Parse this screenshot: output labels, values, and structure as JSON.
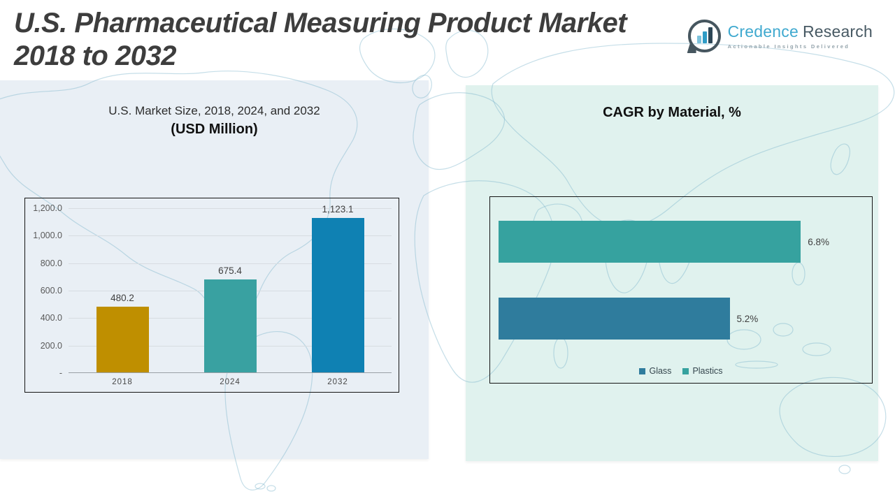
{
  "header": {
    "title_line1": "U.S. Pharmaceutical Measuring Product Market",
    "title_line2": "2018 to 2032"
  },
  "logo": {
    "brand_primary": "Credence",
    "brand_secondary": "Research",
    "tagline": "Actionable Insights Delivered"
  },
  "left_section": {
    "title": "U.S. Market Size, 2018, 2024, and 2032",
    "subtitle": "(USD Million)"
  },
  "right_section": {
    "title": "CAGR by Material, %"
  },
  "chart_data": [
    {
      "type": "bar",
      "title": "U.S. Market Size, 2018, 2024, and 2032 (USD Million)",
      "categories": [
        "2018",
        "2024",
        "2032"
      ],
      "values": [
        480.2,
        675.4,
        1123.1
      ],
      "value_labels": [
        "480.2",
        "675.4",
        "1,123.1"
      ],
      "xlabel": "",
      "ylabel": "",
      "ylim": [
        0,
        1200
      ],
      "ytick_labels": [
        "1,200.0",
        "1,000.0",
        "800.0",
        "600.0",
        "400.0",
        "200.0",
        "-"
      ],
      "grid": true,
      "legend_position": "none",
      "bar_colors": [
        "#bf8f00",
        "#39a1a1",
        "#0f81b3"
      ]
    },
    {
      "type": "bar",
      "orientation": "horizontal",
      "title": "CAGR by Material, %",
      "categories": [
        "Plastics",
        "Glass"
      ],
      "values": [
        6.8,
        5.2
      ],
      "value_labels": [
        "6.8%",
        "5.2%"
      ],
      "xlim": [
        0,
        8.4
      ],
      "grid": false,
      "legend_position": "bottom",
      "bar_colors": [
        "#36a29f",
        "#2f7c9d"
      ],
      "legend": [
        {
          "label": "Glass",
          "color": "#2f7c9d"
        },
        {
          "label": "Plastics",
          "color": "#36a29f"
        }
      ]
    }
  ],
  "colors": {
    "title_text": "#3d3d3d",
    "left_panel_bg": "#e9eff5",
    "right_panel_bg": "#e0f2ee",
    "map_stroke": "#7fb6cc",
    "axis_text": "#595959",
    "brand_teal": "#3fa9cf",
    "brand_dark": "#475963"
  }
}
